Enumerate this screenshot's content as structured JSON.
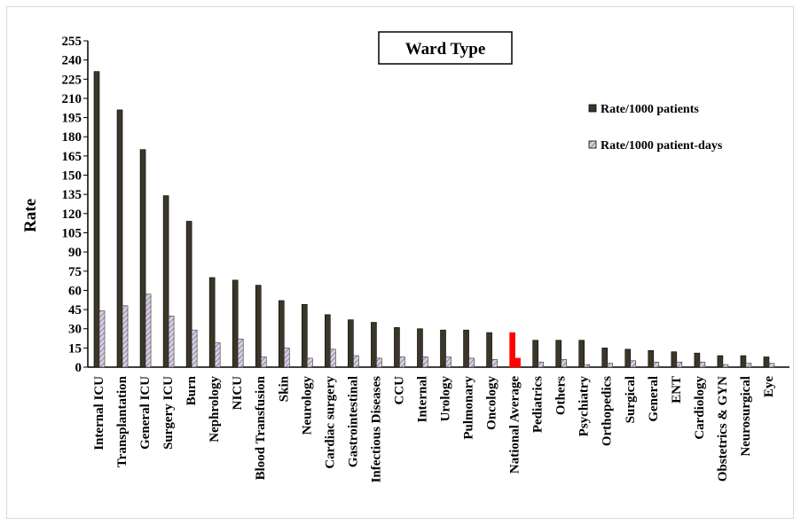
{
  "chart_data": {
    "type": "bar",
    "title": "Ward Type",
    "ylabel": "Rate",
    "xlabel": "",
    "ylim": [
      0,
      255
    ],
    "yticks": [
      0,
      15,
      30,
      45,
      60,
      75,
      90,
      105,
      120,
      135,
      150,
      165,
      180,
      195,
      210,
      225,
      240,
      255
    ],
    "grid": false,
    "legend_position": "right",
    "categories": [
      "Internal ICU",
      "Transplantation",
      "General ICU",
      "Surgery ICU",
      "Burn",
      "Nephrology",
      "NICU",
      "Blood Transfusion",
      "Skin",
      "Neurology",
      "Cardiac surgery",
      "Gastrointestinal",
      "Infectious Diseases",
      "CCU",
      "Internal",
      "Urology",
      "Pulmonary",
      "Oncology",
      "National Average",
      "Pediatrics",
      "Others",
      "Psychiatry",
      "Orthopedics",
      "Surgical",
      "General",
      "ENT",
      "Cardiology",
      "Obstetrics & GYN",
      "Neurosurgical",
      "Eye"
    ],
    "highlight_category": "National Average",
    "highlight_color": "#ff0000",
    "series": [
      {
        "name": "Rate/1000 patients",
        "color": "#3b3728",
        "values": [
          231,
          201,
          170,
          134,
          114,
          70,
          68,
          64,
          52,
          49,
          41,
          37,
          35,
          31,
          30,
          29,
          29,
          27,
          27,
          21,
          21,
          21,
          15,
          14,
          13,
          12,
          11,
          9,
          9,
          8
        ]
      },
      {
        "name": "Rate/1000 patient-days",
        "color": "#c8bfd4",
        "values": [
          44,
          48,
          57,
          40,
          29,
          19,
          22,
          8,
          15,
          7,
          14,
          9,
          7,
          8,
          8,
          8,
          7,
          6,
          7,
          4,
          6,
          2,
          3,
          5,
          4,
          4,
          4,
          2,
          3,
          3
        ]
      }
    ]
  }
}
